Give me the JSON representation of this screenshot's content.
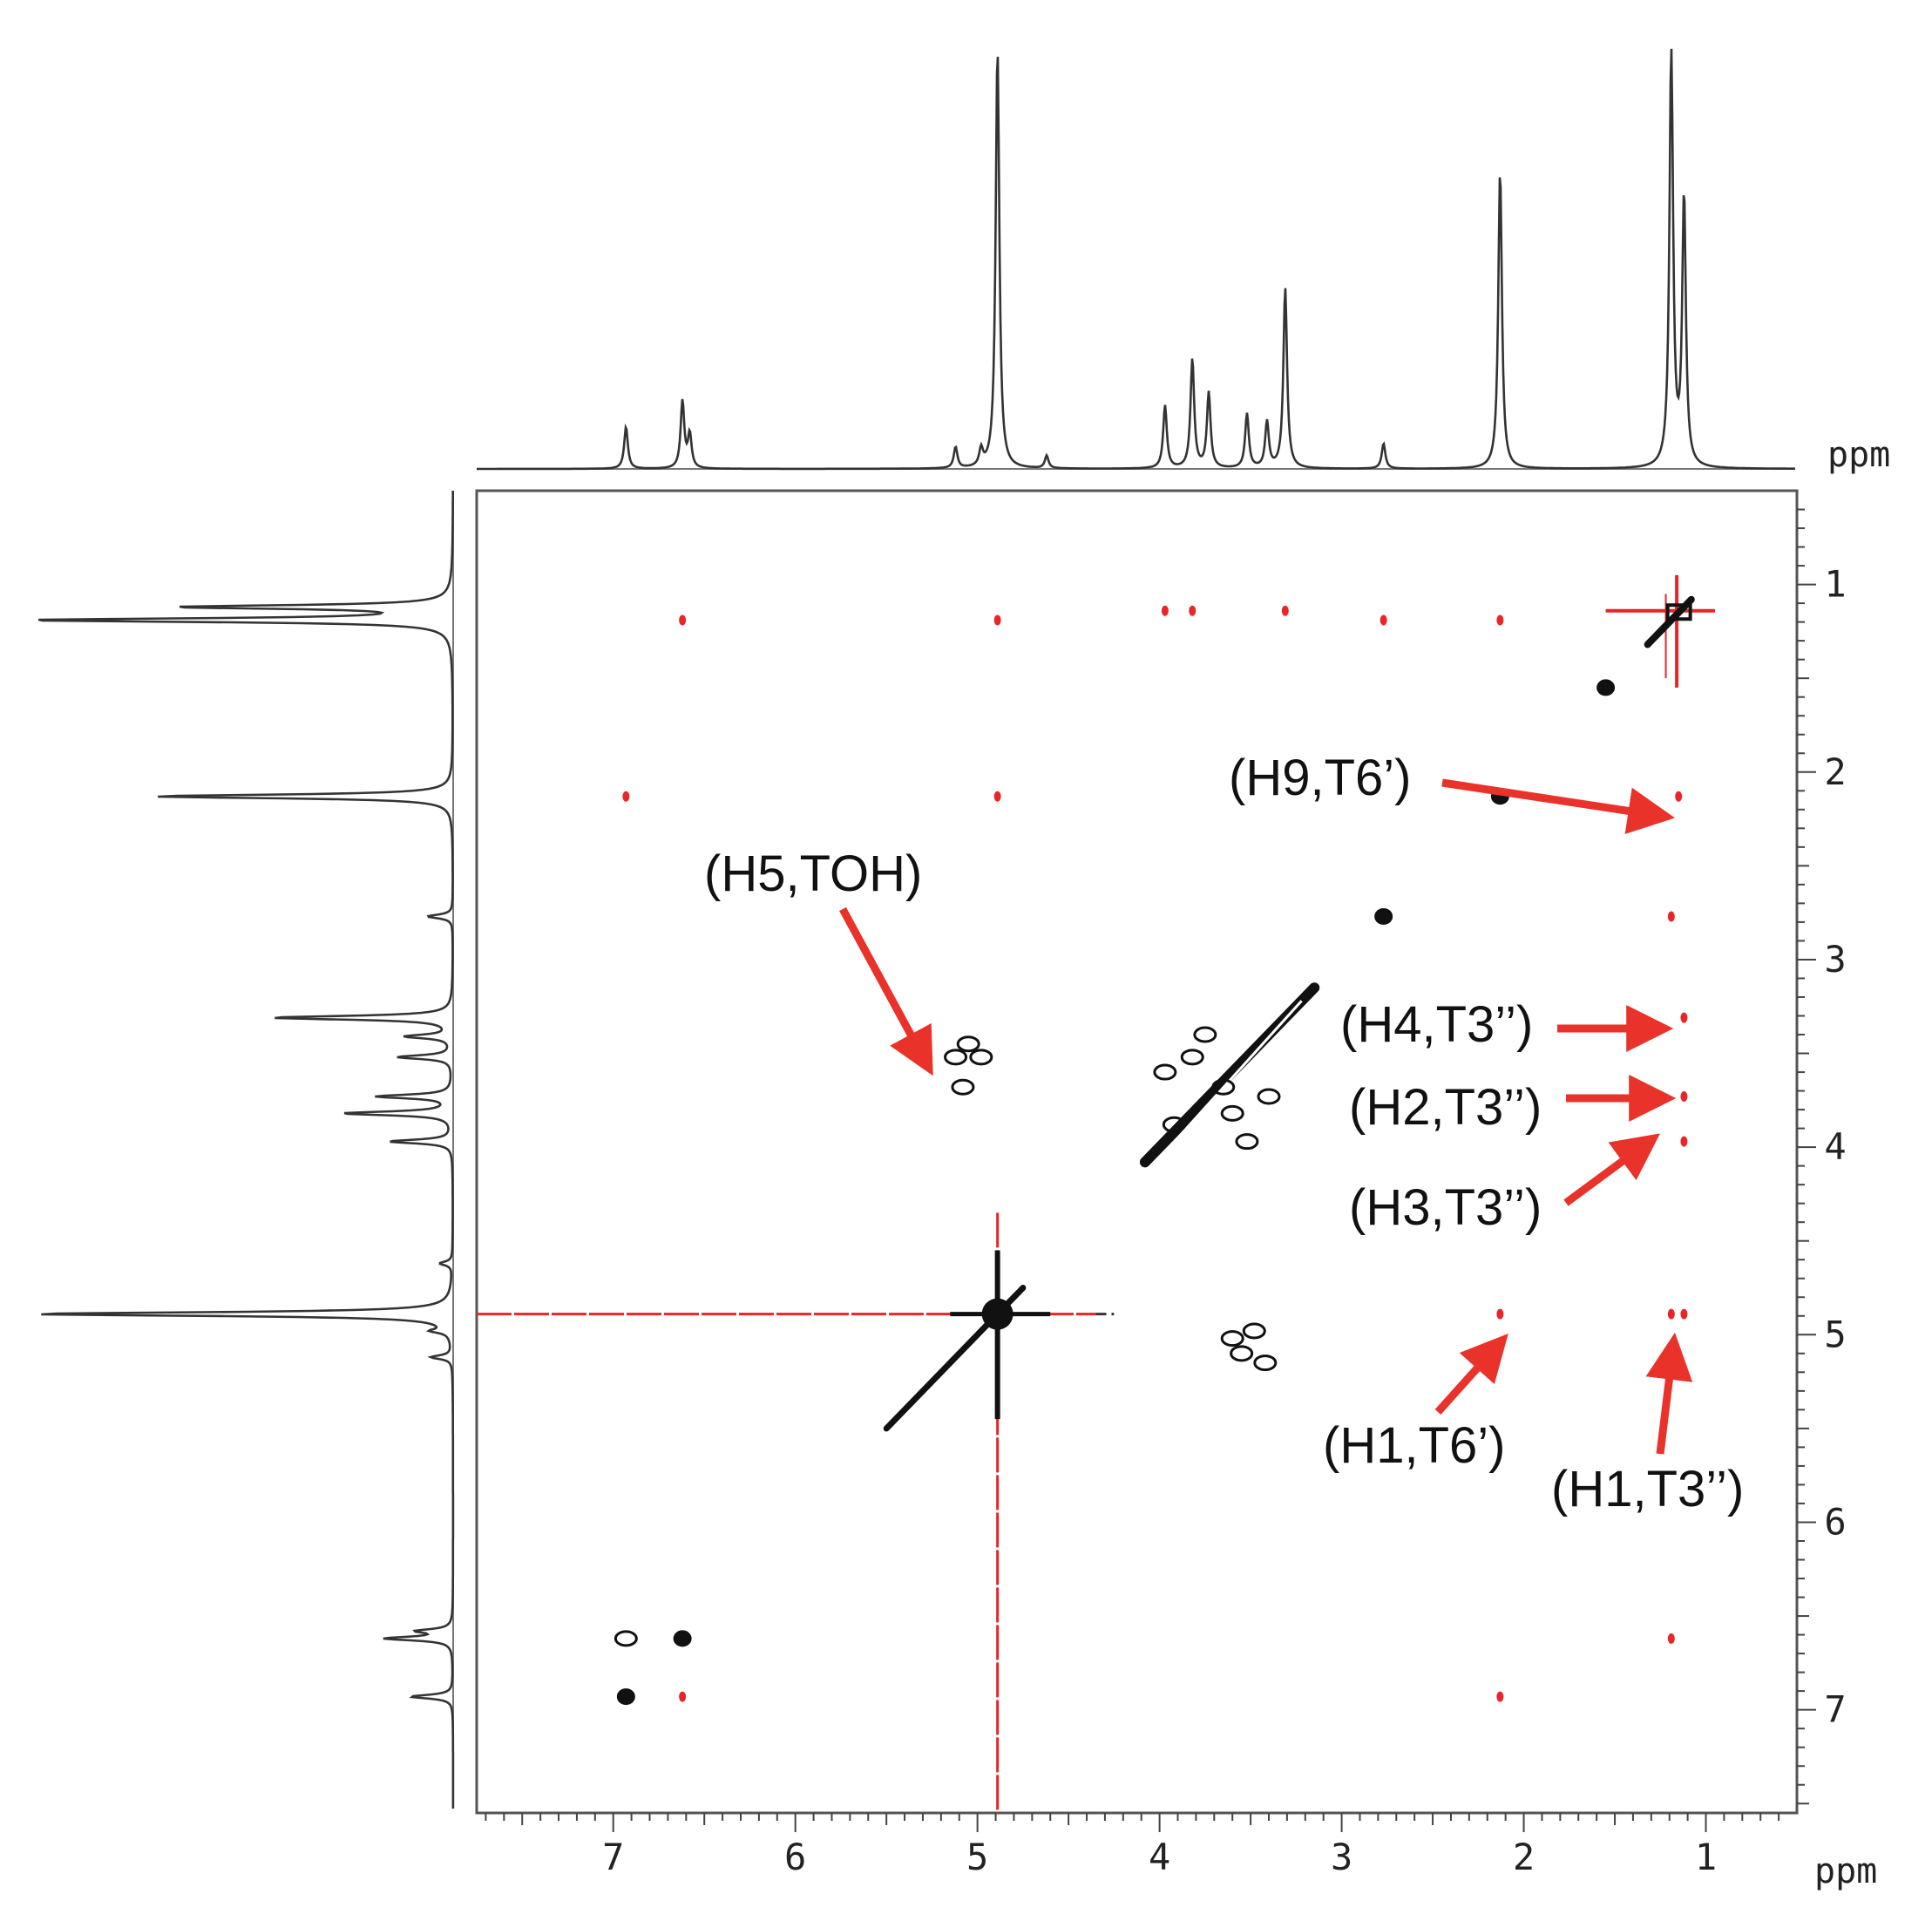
{
  "chart_data": {
    "type": "scatter",
    "title": "",
    "x_axis": {
      "label": "ppm",
      "ticks": [
        7,
        6,
        5,
        4,
        3,
        2,
        1
      ],
      "range": [
        7.75,
        0.5
      ],
      "reversed": true
    },
    "y_axis": {
      "label": "ppm",
      "ticks": [
        1,
        2,
        3,
        4,
        5,
        6,
        7
      ],
      "range": [
        0.5,
        7.55
      ],
      "reversed": true
    },
    "grid": false,
    "projection_1h": {
      "peaks": [
        {
          "ppm": 6.93,
          "height": 0.1
        },
        {
          "ppm": 6.62,
          "height": 0.16
        },
        {
          "ppm": 6.58,
          "height": 0.08
        },
        {
          "ppm": 5.12,
          "height": 0.05
        },
        {
          "ppm": 4.98,
          "height": 0.04
        },
        {
          "ppm": 4.89,
          "height": 1.0
        },
        {
          "ppm": 4.62,
          "height": 0.03
        },
        {
          "ppm": 3.97,
          "height": 0.15
        },
        {
          "ppm": 3.82,
          "height": 0.26
        },
        {
          "ppm": 3.73,
          "height": 0.18
        },
        {
          "ppm": 3.52,
          "height": 0.13
        },
        {
          "ppm": 3.41,
          "height": 0.11
        },
        {
          "ppm": 3.31,
          "height": 0.43
        },
        {
          "ppm": 2.77,
          "height": 0.06
        },
        {
          "ppm": 2.13,
          "height": 0.71
        },
        {
          "ppm": 1.19,
          "height": 1.0
        },
        {
          "ppm": 1.12,
          "height": 0.64
        }
      ]
    },
    "noe_crosspeaks": [
      {
        "x": 6.62,
        "y": 1.19
      },
      {
        "x": 4.89,
        "y": 1.19
      },
      {
        "x": 3.97,
        "y": 1.14
      },
      {
        "x": 3.82,
        "y": 1.14
      },
      {
        "x": 3.31,
        "y": 1.14
      },
      {
        "x": 2.77,
        "y": 1.19
      },
      {
        "x": 2.13,
        "y": 1.19
      },
      {
        "x": 6.93,
        "y": 2.13
      },
      {
        "x": 4.89,
        "y": 2.13
      },
      {
        "x": 1.15,
        "y": 2.13
      },
      {
        "x": 1.19,
        "y": 2.77
      },
      {
        "x": 1.12,
        "y": 3.31
      },
      {
        "x": 1.12,
        "y": 3.73
      },
      {
        "x": 1.12,
        "y": 3.97
      },
      {
        "x": 2.13,
        "y": 4.89
      },
      {
        "x": 1.19,
        "y": 4.89
      },
      {
        "x": 1.12,
        "y": 4.89
      },
      {
        "x": 1.19,
        "y": 6.62
      },
      {
        "x": 2.13,
        "y": 6.93
      },
      {
        "x": 6.62,
        "y": 6.93
      }
    ],
    "roesy_crosspeaks": [
      {
        "x": 2.13,
        "y": 2.13
      },
      {
        "x": 2.77,
        "y": 2.77
      },
      {
        "x": 6.62,
        "y": 6.62
      },
      {
        "x": 6.93,
        "y": 6.93
      },
      {
        "x": 6.93,
        "y": 6.62
      },
      {
        "x": 1.55,
        "y": 1.55
      },
      {
        "x": 5.12,
        "y": 3.52
      },
      {
        "x": 5.05,
        "y": 3.45
      },
      {
        "x": 4.98,
        "y": 3.52
      },
      {
        "x": 5.08,
        "y": 3.68
      },
      {
        "x": 3.48,
        "y": 4.98
      },
      {
        "x": 3.55,
        "y": 5.1
      },
      {
        "x": 3.42,
        "y": 5.15
      },
      {
        "x": 3.6,
        "y": 5.02
      },
      {
        "x": 3.97,
        "y": 3.6
      },
      {
        "x": 3.82,
        "y": 3.52
      },
      {
        "x": 3.6,
        "y": 3.82
      },
      {
        "x": 3.52,
        "y": 3.97
      },
      {
        "x": 3.4,
        "y": 3.73
      },
      {
        "x": 3.75,
        "y": 3.4
      },
      {
        "x": 3.92,
        "y": 3.88
      },
      {
        "x": 3.65,
        "y": 3.68
      }
    ],
    "annotations": [
      {
        "label": "(H9,T6’)",
        "target_x": 1.15,
        "target_y": 2.18
      },
      {
        "label": "(H5,TOH)",
        "target_x": 5.22,
        "target_y": 3.6
      },
      {
        "label": "(H4,T3’’)",
        "target_x": 1.27,
        "target_y": 3.32
      },
      {
        "label": "(H2,T3’’)",
        "target_x": 1.25,
        "target_y": 3.7
      },
      {
        "label": "(H3,T3’’)",
        "target_x": 1.25,
        "target_y": 3.9
      },
      {
        "label": "(H1,T6’)",
        "target_x": 2.12,
        "target_y": 4.92
      },
      {
        "label": "(H1,T3’’)",
        "target_x": 1.18,
        "target_y": 4.93
      }
    ],
    "colors": {
      "positive": "#111111",
      "negative": "#e8262a",
      "arrow": "#e8322a"
    }
  }
}
